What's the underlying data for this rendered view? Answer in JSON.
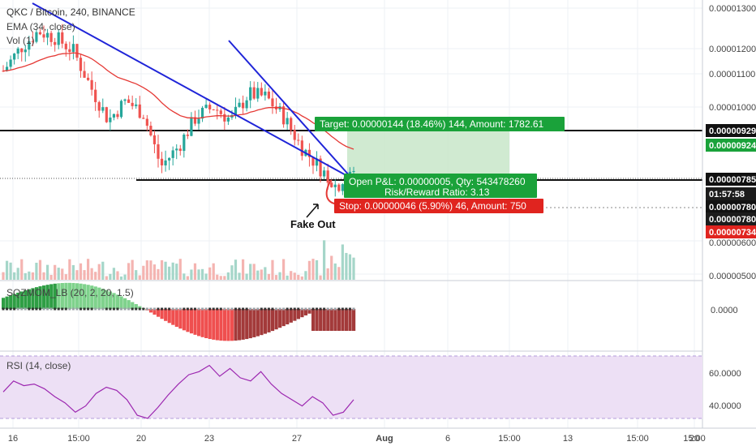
{
  "header": {
    "symbol_line": "QKC / Bitcoin, 240, BINANCE",
    "ema_label": "EMA (34, close)",
    "vol_label": "Vol (1)"
  },
  "price_axis": {
    "ticks": [
      "0.00001300",
      "0.00001200",
      "0.00001100",
      "0.00001000",
      "0.00000700",
      "0.00000600",
      "0.00000500"
    ],
    "markers": [
      {
        "value": "0.00000929",
        "style": "black-filled"
      },
      {
        "value": "0.00000924",
        "style": "green"
      },
      {
        "value": "0.00000785",
        "style": "black-filled"
      },
      {
        "value": "01:57:58",
        "style": "dark"
      },
      {
        "value": "0.00000780",
        "style": "black-filled"
      },
      {
        "value": "0.00000780",
        "style": "dark"
      },
      {
        "value": "0.00000734",
        "style": "red"
      }
    ]
  },
  "time_axis": {
    "labels": [
      "16",
      "15:00",
      "20",
      "23",
      "27",
      "Aug",
      "6",
      "15:00",
      "13",
      "15:00",
      "20",
      "15:00"
    ]
  },
  "position": {
    "target_label": "Target: 0.00000144 (18.46%) 144, Amount: 1782.61",
    "pnl_label": "Open P&L: 0.00000005, Qty: 543478260",
    "rr_label": "Risk/Reward Ratio: 3.13",
    "stop_label": "Stop: 0.00000046 (5.90%) 46, Amount: 750"
  },
  "annotation": {
    "fake_out": "Fake Out"
  },
  "sqzmom": {
    "label": "SQZMOM_LB (20, 2, 20, 1.5)",
    "tick": "0.0000"
  },
  "rsi": {
    "label": "RSI (14, close)",
    "ticks": [
      "60.0000",
      "40.0000"
    ]
  },
  "colors": {
    "up": "#26a69a",
    "down": "#ef5350",
    "trend": "#1f24d8",
    "ema": "#e53935",
    "target_fill": "#c8e6c9",
    "target_label": "#1aa23a",
    "stop_label": "#e0241f",
    "rsi_band": "#ede0f5",
    "rsi_line": "#9c27b0",
    "vol_up": "#a5d6c9",
    "vol_down": "#f4b4b1"
  },
  "chart_data": [
    {
      "type": "candlestick",
      "title": "QKC / Bitcoin, 240, BINANCE",
      "ylim": [
        4.9e-06,
        1.33e-05
      ],
      "x": [
        "16",
        "15:00",
        "20",
        "23",
        "27",
        "Aug",
        "6",
        "15:00",
        "13",
        "15:00",
        "20",
        "15:00"
      ],
      "key_levels": {
        "target_top": 9.29e-06,
        "entry": 7.85e-06,
        "stop": 7.34e-06,
        "current": 7.8e-06
      },
      "approx_close_path": [
        1.11e-05,
        1.18e-05,
        1.23e-05,
        1.21e-05,
        1.17e-05,
        1.06e-05,
        9.6e-06,
        1.02e-05,
        9.8e-06,
        8.2e-06,
        8.8e-06,
        9.7e-06,
        1e-05,
        9.6e-06,
        1.04e-05,
        1.03e-05,
        9.7e-06,
        8.8e-06,
        8.2e-06,
        7.6e-06,
        8e-06
      ]
    },
    {
      "type": "bar",
      "name": "SQZMOM_LB (20, 2, 20, 1.5)",
      "tick": "0.0000"
    },
    {
      "type": "line",
      "name": "RSI (14, close)",
      "ylim": [
        28,
        68
      ],
      "values": [
        45,
        52,
        49,
        50,
        47,
        42,
        38,
        32,
        36,
        44,
        48,
        46,
        40,
        30,
        28,
        35,
        43,
        50,
        56,
        58,
        62,
        55,
        60,
        54,
        52,
        58,
        50,
        44,
        40,
        36,
        42,
        38,
        30,
        32,
        40
      ]
    }
  ]
}
